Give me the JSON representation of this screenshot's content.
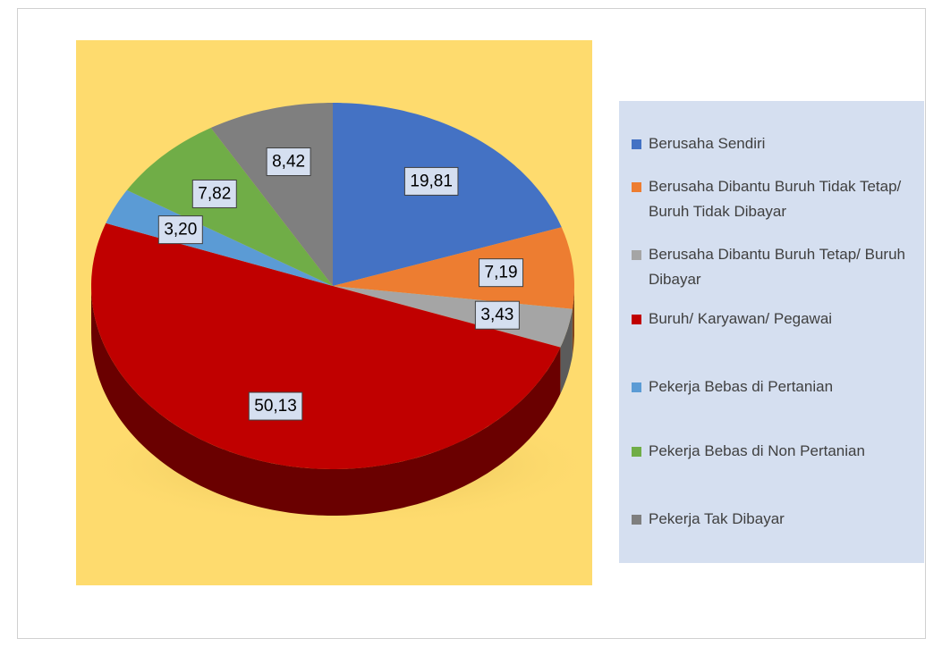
{
  "chart_data": {
    "type": "pie",
    "categories": [
      "Berusaha Sendiri",
      "Berusaha Dibantu Buruh Tidak Tetap/ Buruh Tidak Dibayar",
      "Berusaha Dibantu Buruh Tetap/ Buruh Dibayar",
      "Buruh/ Karyawan/ Pegawai",
      "Pekerja Bebas di Pertanian",
      "Pekerja Bebas di Non Pertanian",
      "Pekerja Tak Dibayar"
    ],
    "values": [
      19.81,
      7.19,
      3.43,
      50.13,
      3.2,
      7.82,
      8.42
    ],
    "value_labels": [
      "19,81",
      "7,19",
      "3,43",
      "50,13",
      "3,20",
      "7,82",
      "8,42"
    ],
    "colors": [
      "#4472c4",
      "#ed7d31",
      "#a5a5a5",
      "#c00000",
      "#5b9bd5",
      "#70ad47",
      "#7f7f7f"
    ],
    "legend": "right"
  }
}
